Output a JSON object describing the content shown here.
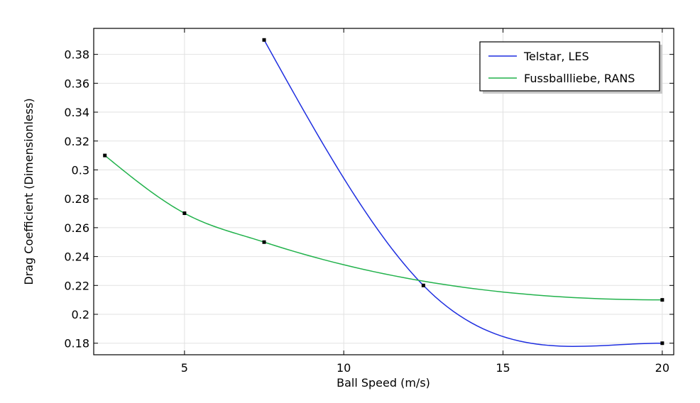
{
  "chart_data": {
    "type": "line",
    "title": "",
    "xlabel": "Ball Speed (m/s)",
    "ylabel": "Drag Coefficient (Dimensionless)",
    "xlim": [
      2.15,
      20.36
    ],
    "ylim": [
      0.172,
      0.398
    ],
    "xticks": [
      5,
      10,
      15,
      20
    ],
    "xtick_labels": [
      "5",
      "10",
      "15",
      "20"
    ],
    "yticks": [
      0.18,
      0.2,
      0.22,
      0.24,
      0.26,
      0.28,
      0.3,
      0.32,
      0.34,
      0.36,
      0.38
    ],
    "ytick_labels": [
      "0.18",
      "0.2",
      "0.22",
      "0.24",
      "0.26",
      "0.28",
      "0.3",
      "0.32",
      "0.34",
      "0.36",
      "0.38"
    ],
    "grid": true,
    "legend_position": "top-right",
    "series": [
      {
        "name": "Telstar, LES",
        "color": "#1f2fe0",
        "x": [
          7.5,
          12.5,
          20
        ],
        "y": [
          0.39,
          0.22,
          0.18
        ]
      },
      {
        "name": "Fussballliebe, RANS",
        "color": "#22b24c",
        "x": [
          2.5,
          5,
          7.5,
          20
        ],
        "y": [
          0.31,
          0.27,
          0.25,
          0.21
        ]
      }
    ]
  }
}
